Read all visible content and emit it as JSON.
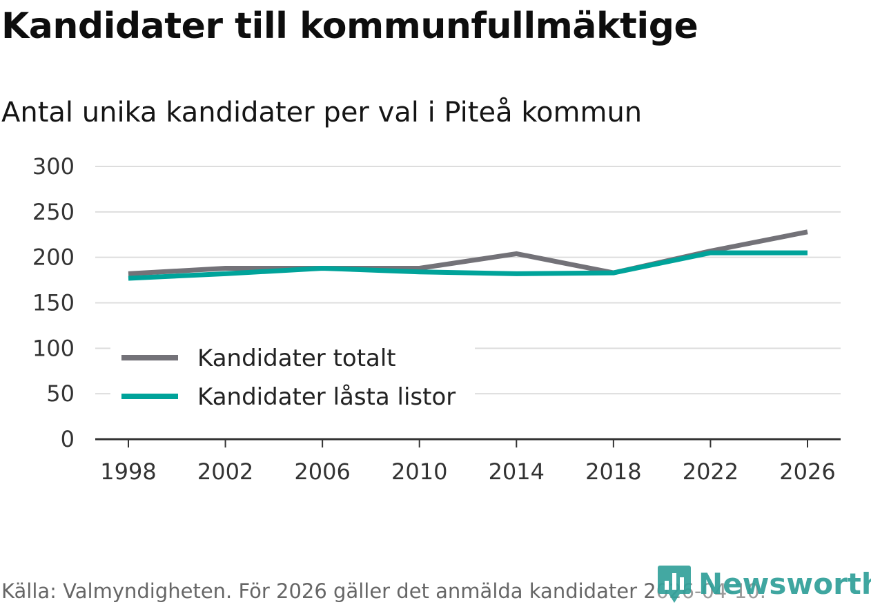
{
  "header": {
    "title": "Kandidater till kommunfullmäktige",
    "subtitle": "Antal unika kandidater per val i Piteå kommun"
  },
  "footer": {
    "source": "Källa: Valmyndigheten. För 2026 gäller det anmälda kandidater 2026-04-10.",
    "brand": "Newsworthy",
    "brand_icon": "bar-chart-pin-icon",
    "brand_color": "#2f9f98"
  },
  "chart_data": {
    "type": "line",
    "title": "Kandidater till kommunfullmäktige",
    "subtitle": "Antal unika kandidater per val i Piteå kommun",
    "xlabel": "",
    "ylabel": "",
    "x": [
      1998,
      2002,
      2006,
      2010,
      2014,
      2018,
      2022,
      2026
    ],
    "ylim": [
      0,
      300
    ],
    "yticks": [
      0,
      50,
      100,
      150,
      200,
      250,
      300
    ],
    "grid": true,
    "legend_position": "bottom-left",
    "series": [
      {
        "name": "Kandidater totalt",
        "color": "#737278",
        "values": [
          182,
          188,
          188,
          188,
          204,
          183,
          207,
          228
        ]
      },
      {
        "name": "Kandidater låsta listor",
        "color": "#00a39a",
        "values": [
          177,
          182,
          188,
          184,
          182,
          183,
          205,
          205
        ]
      }
    ]
  }
}
